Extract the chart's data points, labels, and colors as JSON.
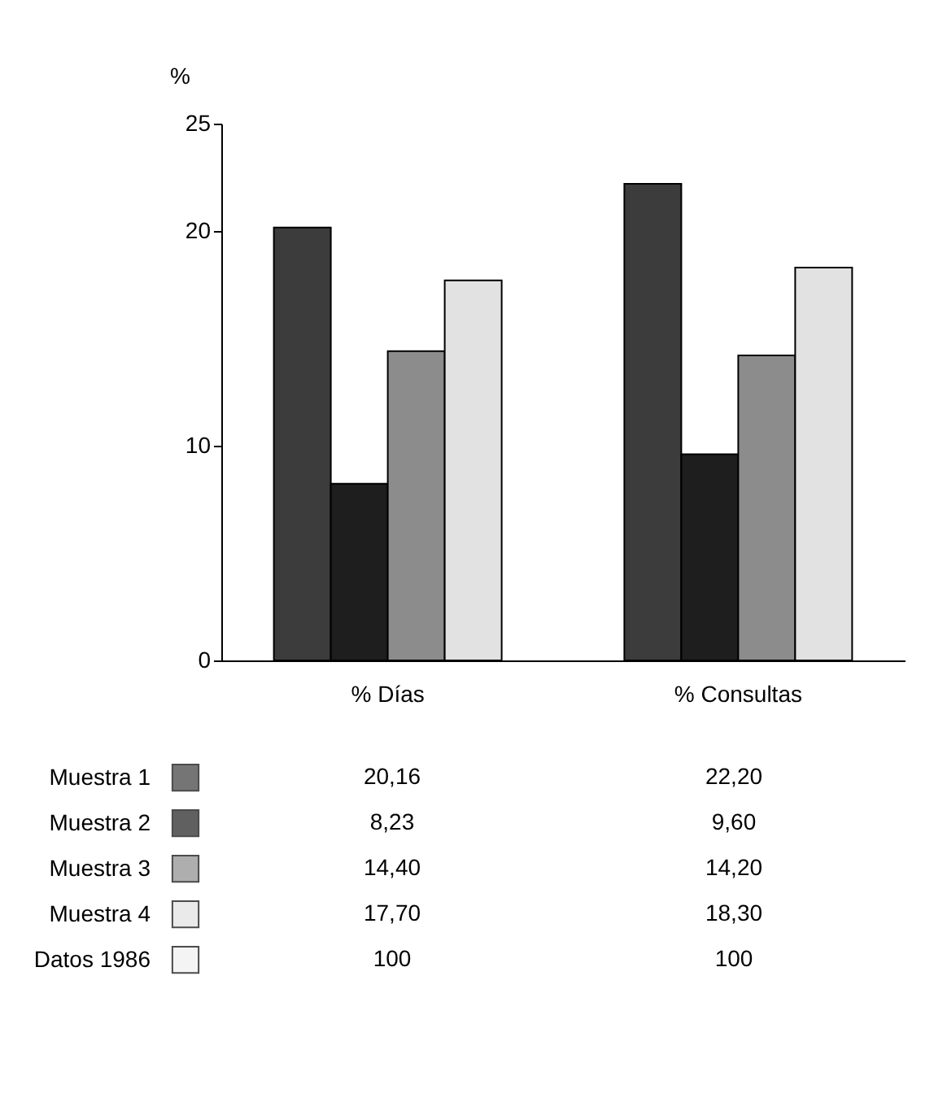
{
  "chart_data": {
    "type": "bar",
    "ylabel": "%",
    "categories": [
      "% Días",
      "% Consultas"
    ],
    "series": [
      {
        "name": "Muestra 1",
        "color": "#3c3c3c",
        "values": [
          20.16,
          22.2
        ],
        "value_labels": [
          "20,16",
          "22,20"
        ]
      },
      {
        "name": "Muestra 2",
        "color": "#1e1e1e",
        "values": [
          8.23,
          9.6
        ],
        "value_labels": [
          "8,23",
          "9,60"
        ]
      },
      {
        "name": "Muestra 3",
        "color": "#8c8c8c",
        "values": [
          14.4,
          14.2
        ],
        "value_labels": [
          "14,40",
          "14,20"
        ]
      },
      {
        "name": "Muestra 4",
        "color": "#e2e2e2",
        "values": [
          17.7,
          18.3
        ],
        "value_labels": [
          "17,70",
          "18,30"
        ]
      },
      {
        "name": "Datos 1986",
        "color": "#f0f0f0",
        "values": [
          null,
          null
        ],
        "value_labels": [
          "100",
          "100"
        ]
      }
    ],
    "ylim": [
      0,
      25
    ],
    "yticks": [
      0,
      10,
      20,
      25
    ],
    "grid": false,
    "legend": "bottom"
  }
}
